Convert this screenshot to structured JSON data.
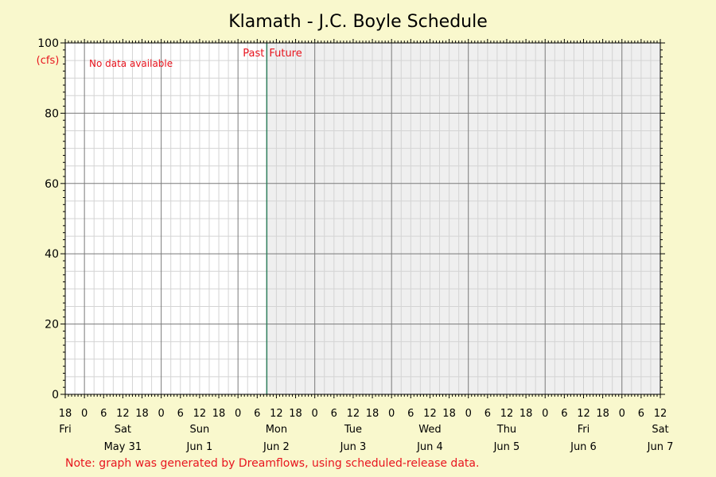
{
  "chart_data": {
    "type": "line",
    "title": "Klamath - J.C. Boyle Schedule",
    "y_unit_label": "(cfs)",
    "ylim": [
      0,
      100
    ],
    "y_ticks": [
      0,
      20,
      40,
      60,
      80,
      100
    ],
    "x_start": "2025-05-30T18:00",
    "x_end": "2025-06-07T12:00",
    "now_marker": "2025-06-02T09:00",
    "hour_tick_labels": [
      "18",
      "0",
      "6",
      "12",
      "18",
      "0",
      "6",
      "12",
      "18",
      "0",
      "6",
      "12",
      "18",
      "0",
      "6",
      "12",
      "18",
      "0",
      "6",
      "12",
      "18",
      "0",
      "6",
      "12",
      "18",
      "0",
      "6",
      "12",
      "18",
      "0",
      "6",
      "12"
    ],
    "days": [
      {
        "weekday": "Fri",
        "date": "",
        "at": "2025-05-30T18:00"
      },
      {
        "weekday": "Sat",
        "date": "May 31",
        "at": "2025-05-31T12:00"
      },
      {
        "weekday": "Sun",
        "date": "Jun 1",
        "at": "2025-06-01T12:00"
      },
      {
        "weekday": "Mon",
        "date": "Jun 2",
        "at": "2025-06-02T12:00"
      },
      {
        "weekday": "Tue",
        "date": "Jun 3",
        "at": "2025-06-03T12:00"
      },
      {
        "weekday": "Wed",
        "date": "Jun 4",
        "at": "2025-06-04T12:00"
      },
      {
        "weekday": "Thu",
        "date": "Jun 5",
        "at": "2025-06-05T12:00"
      },
      {
        "weekday": "Fri",
        "date": "Jun 6",
        "at": "2025-06-06T12:00"
      },
      {
        "weekday": "Sat",
        "date": "Jun 7",
        "at": "2025-06-07T12:00"
      }
    ],
    "series": [],
    "grid": true,
    "past_label": "Past",
    "future_label": "Future",
    "no_data_text": "No data available",
    "note": "Note: graph was generated by Dreamflows, using scheduled-release data.",
    "colors": {
      "background": "#f9f8cd",
      "plot_past": "#ffffff",
      "plot_future": "#efefef",
      "minor_grid": "#d4d4d4",
      "major_grid": "#7a7a7a",
      "now_line": "#2e7d5b",
      "annotation": "#e8141e"
    }
  }
}
